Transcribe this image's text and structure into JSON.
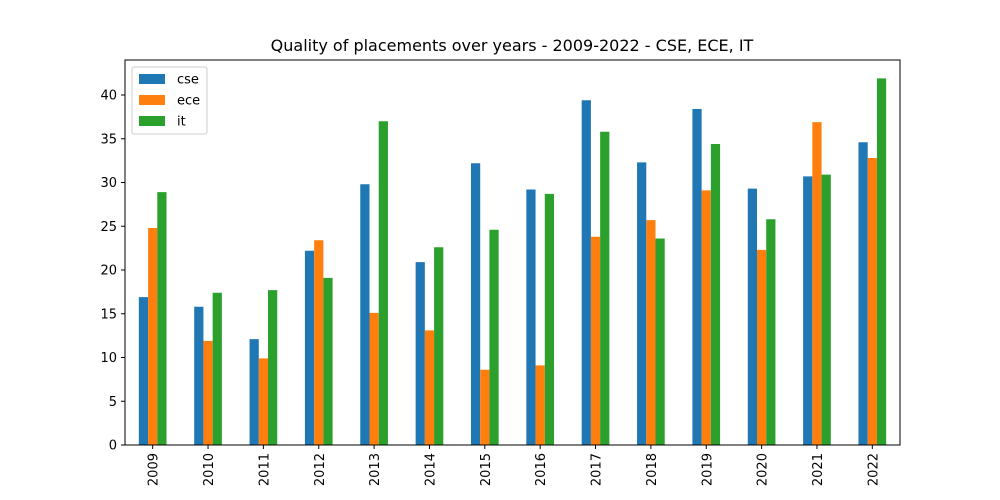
{
  "chart_data": {
    "type": "bar",
    "title": "Quality of placements over years - 2009-2022 - CSE, ECE, IT",
    "xlabel": "",
    "ylabel": "",
    "categories": [
      "2009",
      "2010",
      "2011",
      "2012",
      "2013",
      "2014",
      "2015",
      "2016",
      "2017",
      "2018",
      "2019",
      "2020",
      "2021",
      "2022"
    ],
    "series": [
      {
        "name": "cse",
        "color": "#1f77b4",
        "values": [
          16.9,
          15.8,
          12.1,
          22.2,
          29.8,
          20.9,
          32.2,
          29.2,
          39.4,
          32.3,
          38.4,
          29.3,
          30.7,
          34.6
        ]
      },
      {
        "name": "ece",
        "color": "#ff7f0e",
        "values": [
          24.8,
          11.9,
          9.9,
          23.4,
          15.1,
          13.1,
          8.6,
          9.1,
          23.8,
          25.7,
          29.1,
          22.3,
          36.9,
          32.8
        ]
      },
      {
        "name": "it",
        "color": "#2ca02c",
        "values": [
          28.9,
          17.4,
          17.7,
          19.1,
          37.0,
          22.6,
          24.6,
          28.7,
          35.8,
          23.6,
          34.4,
          25.8,
          30.9,
          41.9
        ]
      }
    ],
    "ylim": [
      0,
      44
    ],
    "yticks": [
      0,
      5,
      10,
      15,
      20,
      25,
      30,
      35,
      40
    ],
    "grid": false,
    "legend_position": "top-left"
  }
}
